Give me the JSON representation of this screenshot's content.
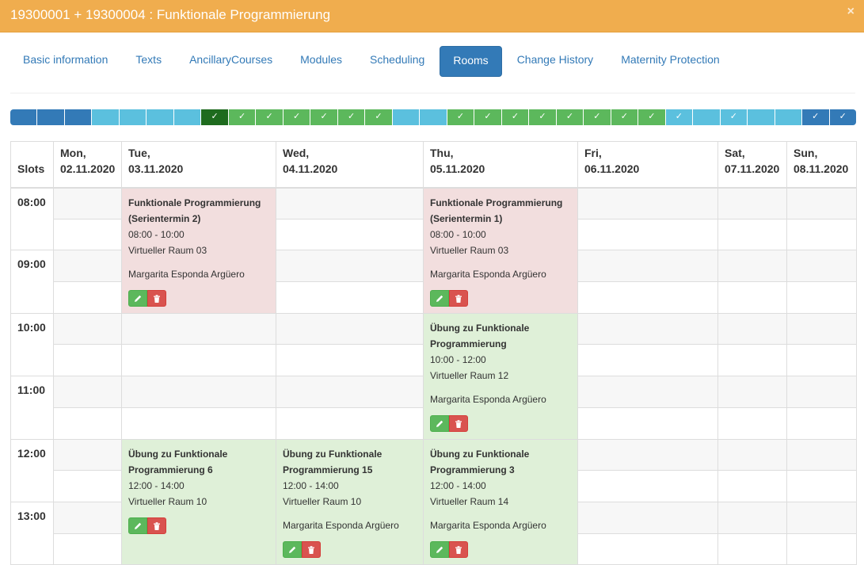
{
  "modal": {
    "title": "19300001 + 19300004 : Funktionale Programmierung",
    "close": "×"
  },
  "tabs": [
    {
      "label": "Basic information"
    },
    {
      "label": "Texts"
    },
    {
      "label": "AncillaryCourses"
    },
    {
      "label": "Modules"
    },
    {
      "label": "Scheduling"
    },
    {
      "label": "Rooms",
      "active": true
    },
    {
      "label": "Change History"
    },
    {
      "label": "Maternity Protection"
    }
  ],
  "weeks": [
    {
      "state": "blue",
      "mark": ""
    },
    {
      "state": "blue",
      "mark": ""
    },
    {
      "state": "blue",
      "mark": ""
    },
    {
      "state": "light",
      "mark": ""
    },
    {
      "state": "light",
      "mark": ""
    },
    {
      "state": "light",
      "mark": ""
    },
    {
      "state": "light",
      "mark": ""
    },
    {
      "state": "dark",
      "mark": "✓"
    },
    {
      "state": "green",
      "mark": "✓"
    },
    {
      "state": "green",
      "mark": "✓"
    },
    {
      "state": "green",
      "mark": "✓"
    },
    {
      "state": "green",
      "mark": "✓"
    },
    {
      "state": "green",
      "mark": "✓"
    },
    {
      "state": "green",
      "mark": "✓"
    },
    {
      "state": "light",
      "mark": ""
    },
    {
      "state": "light",
      "mark": ""
    },
    {
      "state": "green",
      "mark": "✓"
    },
    {
      "state": "green",
      "mark": "✓"
    },
    {
      "state": "green",
      "mark": "✓"
    },
    {
      "state": "green",
      "mark": "✓"
    },
    {
      "state": "green",
      "mark": "✓"
    },
    {
      "state": "green",
      "mark": "✓"
    },
    {
      "state": "green",
      "mark": "✓"
    },
    {
      "state": "green",
      "mark": "✓"
    },
    {
      "state": "light",
      "mark": "✓"
    },
    {
      "state": "light",
      "mark": ""
    },
    {
      "state": "light",
      "mark": "✓"
    },
    {
      "state": "light",
      "mark": ""
    },
    {
      "state": "light",
      "mark": ""
    },
    {
      "state": "blue",
      "mark": "✓"
    },
    {
      "state": "blue",
      "mark": "✓"
    }
  ],
  "calendar": {
    "slots_header": "Slots",
    "days": [
      {
        "name": "Mon,",
        "date": "02.11.2020"
      },
      {
        "name": "Tue,",
        "date": "03.11.2020"
      },
      {
        "name": "Wed,",
        "date": "04.11.2020"
      },
      {
        "name": "Thu,",
        "date": "05.11.2020"
      },
      {
        "name": "Fri,",
        "date": "06.11.2020"
      },
      {
        "name": "Sat,",
        "date": "07.11.2020"
      },
      {
        "name": "Sun,",
        "date": "08.11.2020"
      }
    ],
    "hours": [
      "08:00",
      "09:00",
      "10:00",
      "11:00",
      "12:00",
      "13:00"
    ],
    "events": [
      {
        "day": 1,
        "start": 0,
        "rows": 4,
        "color": "red",
        "title": "Funktionale Programmierung (Serientermin 2)",
        "time": "08:00 - 10:00",
        "room": "Virtueller Raum 03",
        "teacher": "Margarita Esponda Argüero"
      },
      {
        "day": 3,
        "start": 0,
        "rows": 4,
        "color": "red",
        "title": "Funktionale Programmierung (Serientermin 1)",
        "time": "08:00 - 10:00",
        "room": "Virtueller Raum 03",
        "teacher": "Margarita Esponda Argüero"
      },
      {
        "day": 3,
        "start": 4,
        "rows": 4,
        "color": "green",
        "title": "Übung zu Funktionale Programmierung",
        "time": "10:00 - 12:00",
        "room": "Virtueller Raum 12",
        "teacher": "Margarita Esponda Argüero"
      },
      {
        "day": 1,
        "start": 8,
        "rows": 4,
        "color": "green",
        "title": "Übung zu Funktionale Programmierung 6",
        "time": "12:00 - 14:00",
        "room": "Virtueller Raum 10",
        "teacher": ""
      },
      {
        "day": 2,
        "start": 8,
        "rows": 4,
        "color": "green",
        "title": "Übung zu Funktionale Programmierung 15",
        "time": "12:00 - 14:00",
        "room": "Virtueller Raum 10",
        "teacher": "Margarita Esponda Argüero"
      },
      {
        "day": 3,
        "start": 8,
        "rows": 4,
        "color": "green",
        "title": "Übung zu Funktionale Programmierung 3",
        "time": "12:00 - 14:00",
        "room": "Virtueller Raum 14",
        "teacher": "Margarita Esponda Argüero"
      }
    ],
    "colors": {
      "red": "#f2dede",
      "green": "#dff0d8"
    }
  },
  "buttons": {
    "edit_icon": "pencil-icon",
    "delete_icon": "trash-icon"
  }
}
